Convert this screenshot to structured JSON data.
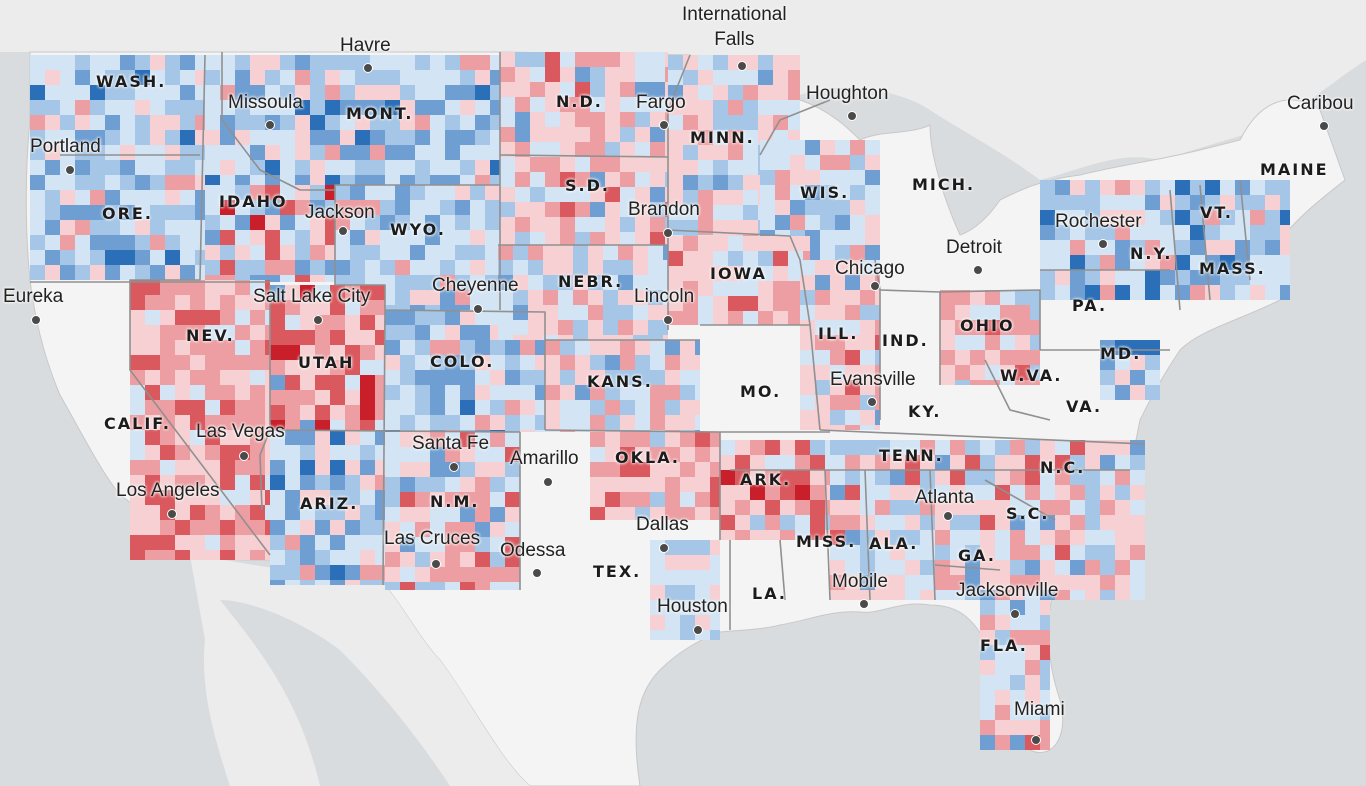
{
  "colors": {
    "water": "#d9dcde",
    "land": "#f4f4f4",
    "state_border": "#9a9a9a",
    "no_data": "#f6f6f6",
    "scale": [
      "#2a6fb8",
      "#6f9fd2",
      "#a5c6e6",
      "#d3e5f4",
      "#f6d0d2",
      "#ec9ea2",
      "#d9595f",
      "#c81f2a"
    ]
  },
  "states": [
    {
      "key": "wash",
      "label": "WASH."
    },
    {
      "key": "mont",
      "label": "MONT."
    },
    {
      "key": "nd",
      "label": "N.D."
    },
    {
      "key": "minn",
      "label": "MINN."
    },
    {
      "key": "ore",
      "label": "ORE."
    },
    {
      "key": "idaho",
      "label": "IDAHO"
    },
    {
      "key": "wyo",
      "label": "WYO."
    },
    {
      "key": "sd",
      "label": "S.D."
    },
    {
      "key": "wis",
      "label": "WIS."
    },
    {
      "key": "mich",
      "label": "MICH."
    },
    {
      "key": "maine",
      "label": "MAINE"
    },
    {
      "key": "vt",
      "label": "VT."
    },
    {
      "key": "ny",
      "label": "N.Y."
    },
    {
      "key": "mass",
      "label": "MASS."
    },
    {
      "key": "nebr",
      "label": "NEBR."
    },
    {
      "key": "iowa",
      "label": "IOWA"
    },
    {
      "key": "nev",
      "label": "NEV."
    },
    {
      "key": "utah",
      "label": "UTAH"
    },
    {
      "key": "colo",
      "label": "COLO."
    },
    {
      "key": "ill",
      "label": "ILL."
    },
    {
      "key": "ind",
      "label": "IND."
    },
    {
      "key": "ohio",
      "label": "OHIO"
    },
    {
      "key": "pa",
      "label": "PA."
    },
    {
      "key": "md",
      "label": "MD."
    },
    {
      "key": "kans",
      "label": "KANS."
    },
    {
      "key": "mo",
      "label": "MO."
    },
    {
      "key": "wva",
      "label": "W.VA."
    },
    {
      "key": "va",
      "label": "VA."
    },
    {
      "key": "ky",
      "label": "KY."
    },
    {
      "key": "calif",
      "label": "CALIF."
    },
    {
      "key": "tenn",
      "label": "TENN."
    },
    {
      "key": "nc",
      "label": "N.C."
    },
    {
      "key": "okla",
      "label": "OKLA."
    },
    {
      "key": "ark",
      "label": "ARK."
    },
    {
      "key": "ariz",
      "label": "ARIZ."
    },
    {
      "key": "nm",
      "label": "N.M."
    },
    {
      "key": "sc",
      "label": "S.C."
    },
    {
      "key": "miss",
      "label": "MISS."
    },
    {
      "key": "ala",
      "label": "ALA."
    },
    {
      "key": "ga",
      "label": "GA."
    },
    {
      "key": "tex",
      "label": "TEX."
    },
    {
      "key": "la",
      "label": "LA."
    },
    {
      "key": "fla",
      "label": "FLA."
    }
  ],
  "cities": [
    {
      "key": "international-falls",
      "label": "International\nFalls"
    },
    {
      "key": "havre",
      "label": "Havre"
    },
    {
      "key": "missoula",
      "label": "Missoula"
    },
    {
      "key": "fargo",
      "label": "Fargo"
    },
    {
      "key": "houghton",
      "label": "Houghton"
    },
    {
      "key": "caribou",
      "label": "Caribou"
    },
    {
      "key": "portland",
      "label": "Portland"
    },
    {
      "key": "jackson",
      "label": "Jackson"
    },
    {
      "key": "brandon",
      "label": "Brandon"
    },
    {
      "key": "rochester",
      "label": "Rochester"
    },
    {
      "key": "detroit",
      "label": "Detroit"
    },
    {
      "key": "chicago",
      "label": "Chicago"
    },
    {
      "key": "eureka",
      "label": "Eureka"
    },
    {
      "key": "salt-lake-city",
      "label": "Salt Lake City"
    },
    {
      "key": "cheyenne",
      "label": "Cheyenne"
    },
    {
      "key": "lincoln",
      "label": "Lincoln"
    },
    {
      "key": "evansville",
      "label": "Evansville"
    },
    {
      "key": "las-vegas",
      "label": "Las Vegas"
    },
    {
      "key": "santa-fe",
      "label": "Santa Fe"
    },
    {
      "key": "amarillo",
      "label": "Amarillo"
    },
    {
      "key": "los-angeles",
      "label": "Los Angeles"
    },
    {
      "key": "atlanta",
      "label": "Atlanta"
    },
    {
      "key": "dallas",
      "label": "Dallas"
    },
    {
      "key": "las-cruces",
      "label": "Las Cruces"
    },
    {
      "key": "odessa",
      "label": "Odessa"
    },
    {
      "key": "mobile",
      "label": "Mobile"
    },
    {
      "key": "jacksonville",
      "label": "Jacksonville"
    },
    {
      "key": "houston",
      "label": "Houston"
    },
    {
      "key": "miami",
      "label": "Miami"
    }
  ]
}
